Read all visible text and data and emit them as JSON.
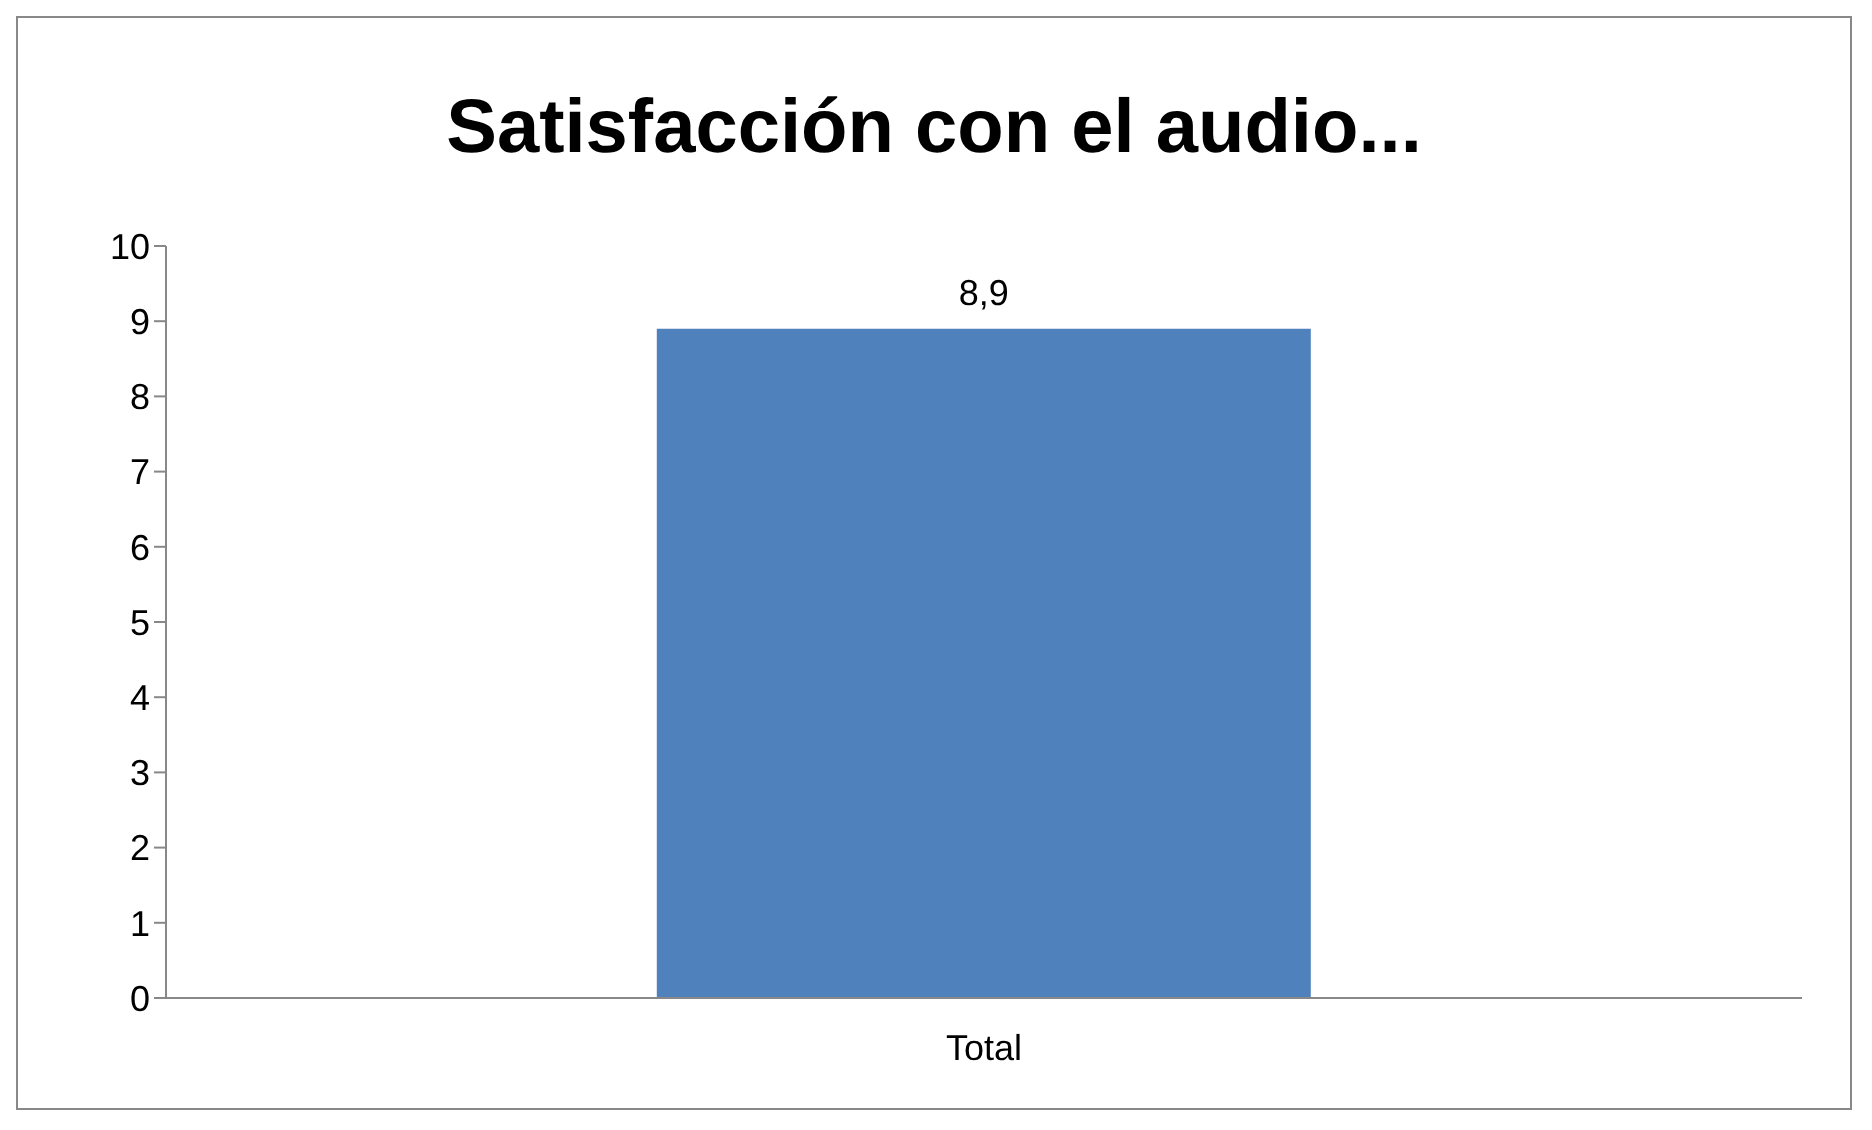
{
  "chart_data": {
    "type": "bar",
    "title": "Satisfacción con el audio...",
    "categories": [
      "Total"
    ],
    "values": [
      8.9
    ],
    "value_labels": [
      "8,9"
    ],
    "color": "#4f81bd",
    "ylim": [
      0,
      10
    ],
    "yticks": [
      0,
      1,
      2,
      3,
      4,
      5,
      6,
      7,
      8,
      9,
      10
    ],
    "grid": false,
    "legend": false
  }
}
